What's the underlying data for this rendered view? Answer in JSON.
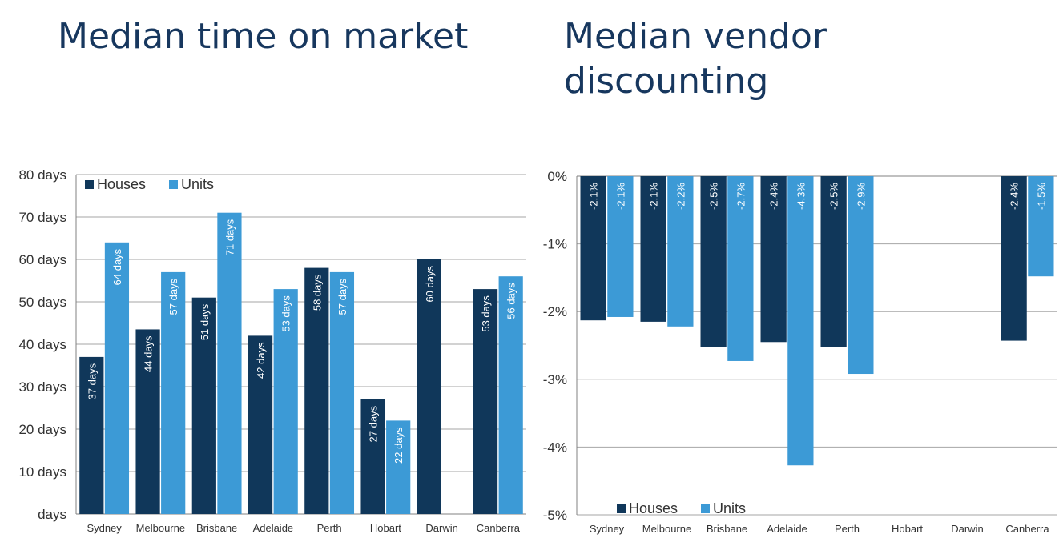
{
  "titles": {
    "left": "Median time on market",
    "right_line1": "Median vendor",
    "right_line2": "discounting"
  },
  "colors": {
    "houses": "#10375a",
    "units": "#3c9ad6",
    "grid": "#a6a6a6",
    "axis": "#808080"
  },
  "chart_data": [
    {
      "type": "bar",
      "title": "Median time on market",
      "categories": [
        "Sydney",
        "Melbourne",
        "Brisbane",
        "Adelaide",
        "Perth",
        "Hobart",
        "Darwin",
        "Canberra"
      ],
      "series": [
        {
          "name": "Houses",
          "values": [
            37,
            43.5,
            51,
            42,
            58,
            27,
            60,
            53
          ],
          "labels": [
            "37 days",
            "44 days",
            "51 days",
            "42 days",
            "58 days",
            "27 days",
            "60 days",
            "53 days"
          ]
        },
        {
          "name": "Units",
          "values": [
            64,
            57,
            71,
            53,
            57,
            22,
            null,
            56
          ],
          "labels": [
            "64 days",
            "57 days",
            "71 days",
            "53 days",
            "57 days",
            "22 days",
            "",
            "56 days"
          ]
        }
      ],
      "ylim": [
        0,
        80
      ],
      "yticks": [
        "days",
        "10 days",
        "20 days",
        "30 days",
        "40 days",
        "50 days",
        "60 days",
        "70 days",
        "80 days"
      ],
      "grid": true,
      "legend": "top-left"
    },
    {
      "type": "bar",
      "title": "Median vendor discounting",
      "categories": [
        "Sydney",
        "Melbourne",
        "Brisbane",
        "Adelaide",
        "Perth",
        "Hobart",
        "Darwin",
        "Canberra"
      ],
      "series": [
        {
          "name": "Houses",
          "values": [
            -2.13,
            -2.15,
            -2.52,
            -2.45,
            -2.52,
            null,
            null,
            -2.43
          ],
          "labels": [
            "-2.1%",
            "-2.1%",
            "-2.5%",
            "-2.4%",
            "-2.5%",
            "",
            "",
            "-2.4%"
          ]
        },
        {
          "name": "Units",
          "values": [
            -2.08,
            -2.22,
            -2.73,
            -4.27,
            -2.92,
            null,
            null,
            -1.48
          ],
          "labels": [
            "-2.1%",
            "-2.2%",
            "-2.7%",
            "-4.3%",
            "-2.9%",
            "",
            "",
            "-1.5%"
          ]
        }
      ],
      "ylim": [
        -5,
        0
      ],
      "yticks": [
        "-5%",
        "-4%",
        "-3%",
        "-2%",
        "-1%",
        "0%"
      ],
      "grid": true,
      "legend": "bottom-left"
    }
  ]
}
